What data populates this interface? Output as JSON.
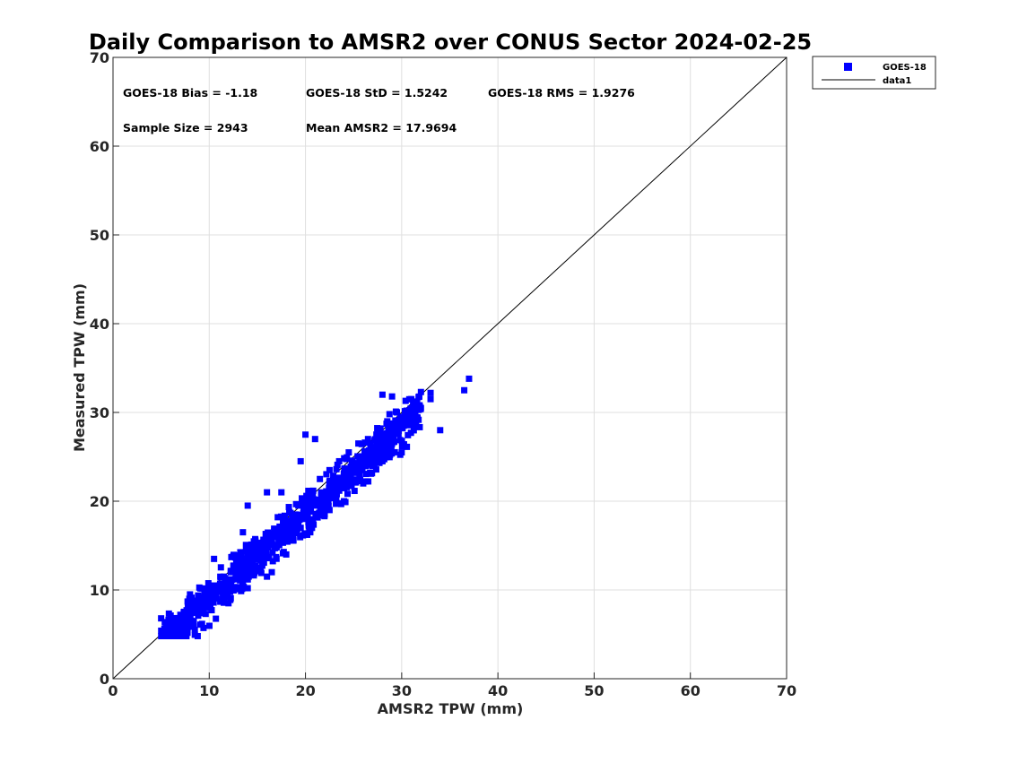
{
  "chart_data": {
    "type": "scatter",
    "title": "Daily Comparison to AMSR2 over CONUS Sector 2024-02-25",
    "xlabel": "AMSR2 TPW (mm)",
    "ylabel": "Measured TPW (mm)",
    "xlim": [
      0,
      70
    ],
    "ylim": [
      0,
      70
    ],
    "xticks": [
      "0",
      "10",
      "20",
      "30",
      "40",
      "50",
      "60",
      "70"
    ],
    "yticks": [
      "0",
      "10",
      "20",
      "30",
      "40",
      "50",
      "60",
      "70"
    ],
    "grid": true,
    "legend_position": "outside-top-right",
    "legend": [
      {
        "label": "GOES-18",
        "marker": "square",
        "color": "#0000ff"
      },
      {
        "label": "data1",
        "marker": "line",
        "color": "#000000"
      }
    ],
    "annotations": [
      "GOES-18 Bias = -1.18",
      "GOES-18 StD = 1.5242",
      "GOES-18 RMS = 1.9276",
      "Sample Size = 2943",
      "Mean AMSR2 = 17.9694"
    ],
    "reference_line": {
      "name": "data1",
      "x": [
        0,
        70
      ],
      "y": [
        0,
        70
      ],
      "color": "#000000"
    },
    "series": [
      {
        "name": "GOES-18",
        "color": "#0000ff",
        "marker": "square",
        "sample_size": 2943,
        "points": [
          [
            5,
            6.8
          ],
          [
            5.5,
            5.5
          ],
          [
            6,
            6.2
          ],
          [
            6.5,
            5.8
          ],
          [
            7,
            7.2
          ],
          [
            7.5,
            6.5
          ],
          [
            8,
            7.8
          ],
          [
            8.5,
            5.5
          ],
          [
            8.8,
            4.8
          ],
          [
            9,
            8.5
          ],
          [
            9.5,
            9.8
          ],
          [
            10,
            9.2
          ],
          [
            10.5,
            10.5
          ],
          [
            11,
            10
          ],
          [
            11.5,
            11.5
          ],
          [
            12,
            10.8
          ],
          [
            12.5,
            13.8
          ],
          [
            13,
            12.5
          ],
          [
            13.5,
            11
          ],
          [
            14,
            13.5
          ],
          [
            14.5,
            12.8
          ],
          [
            15,
            14.2
          ],
          [
            15.5,
            13
          ],
          [
            16,
            15.5
          ],
          [
            16.5,
            12
          ],
          [
            17,
            14.8
          ],
          [
            17.5,
            16.5
          ],
          [
            18,
            15.5
          ],
          [
            18.5,
            17.8
          ],
          [
            19,
            18.5
          ],
          [
            19.5,
            17
          ],
          [
            20,
            19.5
          ],
          [
            20.5,
            21
          ],
          [
            21,
            20
          ],
          [
            21.5,
            22.5
          ],
          [
            22,
            20.8
          ],
          [
            22.5,
            23.5
          ],
          [
            23,
            22
          ],
          [
            23.5,
            24.5
          ],
          [
            24,
            23
          ],
          [
            24.5,
            25.5
          ],
          [
            25,
            24
          ],
          [
            25.5,
            26.5
          ],
          [
            26,
            25
          ],
          [
            26.5,
            27
          ],
          [
            27,
            26
          ],
          [
            27.5,
            28
          ],
          [
            28,
            26.5
          ],
          [
            28.5,
            29
          ],
          [
            29,
            27.5
          ],
          [
            29.5,
            30
          ],
          [
            30,
            28.5
          ],
          [
            30.5,
            30.2
          ],
          [
            31,
            29
          ],
          [
            32,
            30.5
          ],
          [
            33,
            31.5
          ],
          [
            34,
            28
          ],
          [
            36.5,
            32.5
          ],
          [
            37,
            33.8
          ],
          [
            13.5,
            16.5
          ],
          [
            14,
            19.5
          ],
          [
            16,
            21
          ],
          [
            17.5,
            21
          ],
          [
            19.5,
            24.5
          ],
          [
            20,
            27.5
          ],
          [
            21,
            27
          ],
          [
            28,
            32
          ],
          [
            29,
            31.8
          ],
          [
            31,
            31.5
          ],
          [
            32,
            32.3
          ],
          [
            33,
            32.2
          ],
          [
            22,
            18.5
          ],
          [
            24,
            20
          ],
          [
            26,
            22
          ],
          [
            28,
            24.5
          ],
          [
            30,
            25.5
          ],
          [
            12,
            8.5
          ],
          [
            14,
            10.2
          ],
          [
            16,
            11.5
          ],
          [
            10.5,
            13.5
          ],
          [
            8,
            9.5
          ],
          [
            20.5,
            16.5
          ],
          [
            18,
            14
          ],
          [
            22.5,
            19
          ]
        ]
      }
    ]
  }
}
